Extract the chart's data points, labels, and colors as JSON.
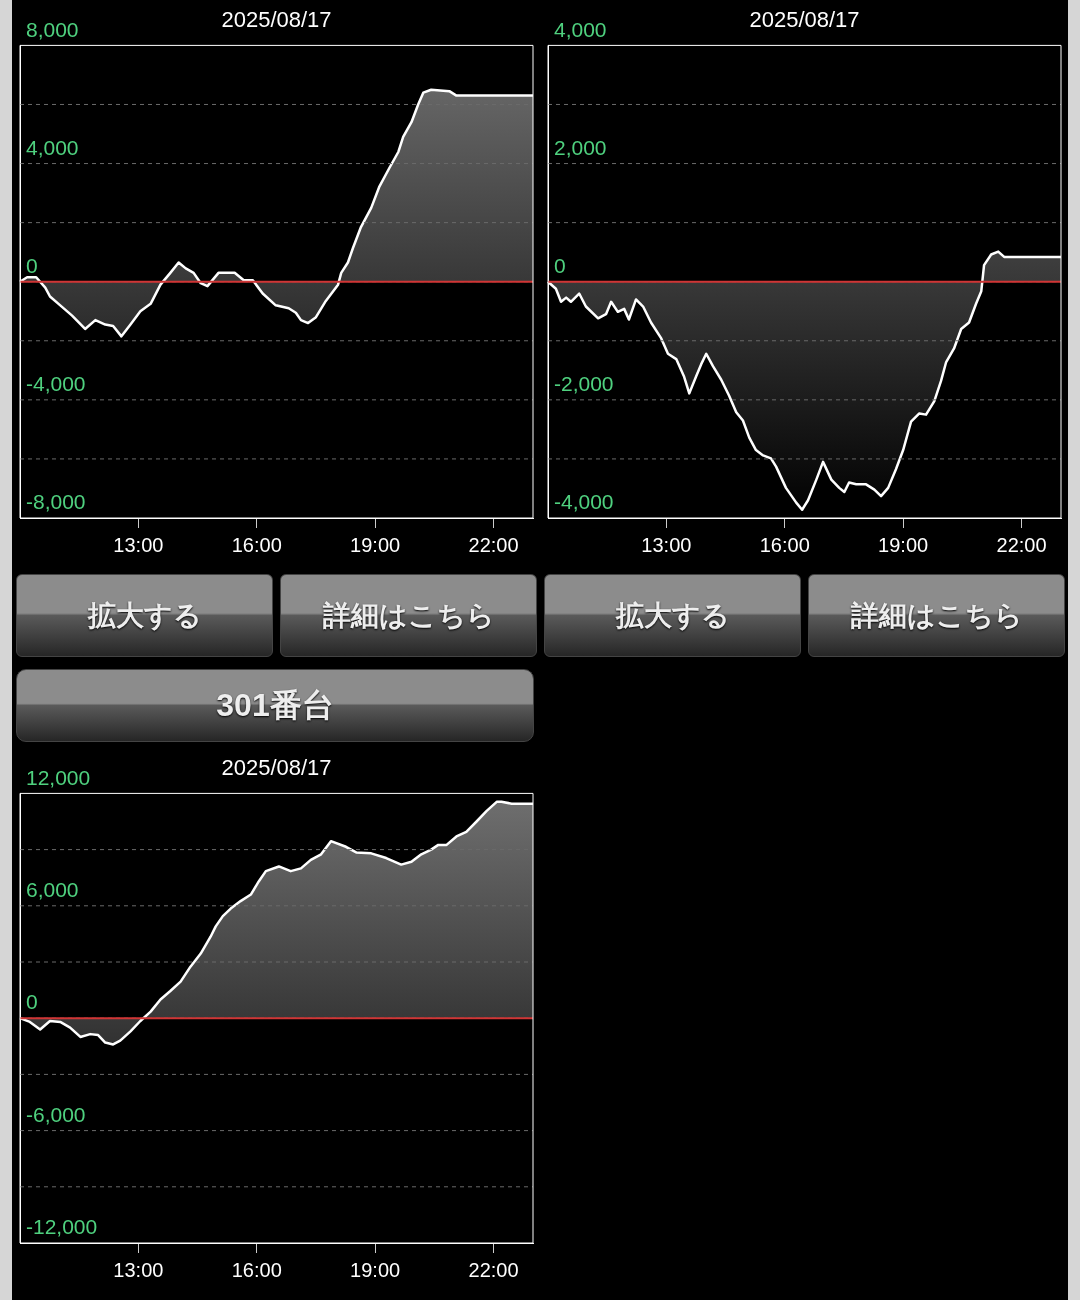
{
  "chart_data": [
    {
      "type": "area",
      "title": "2025/08/17",
      "xlim": [
        10,
        23
      ],
      "ylim": [
        -8000,
        8000
      ],
      "xticks": [
        {
          "value": 13,
          "label": "13:00"
        },
        {
          "value": 16,
          "label": "16:00"
        },
        {
          "value": 19,
          "label": "19:00"
        },
        {
          "value": 22,
          "label": "22:00"
        }
      ],
      "yticks": [
        {
          "value": -8000,
          "label": "-8,000"
        },
        {
          "value": -6000,
          "label": null
        },
        {
          "value": -4000,
          "label": "-4,000"
        },
        {
          "value": -2000,
          "label": null
        },
        {
          "value": 0,
          "label": "0"
        },
        {
          "value": 2000,
          "label": null
        },
        {
          "value": 4000,
          "label": "4,000"
        },
        {
          "value": 6000,
          "label": null
        },
        {
          "value": 8000,
          "label": "8,000"
        }
      ],
      "grid": "y",
      "ref_lines": [
        {
          "axis": "y",
          "value": 0,
          "color": "#d03535"
        }
      ],
      "series": [
        {
          "color": "#ffffff",
          "x": [
            10.0,
            10.18,
            10.41,
            10.64,
            10.76,
            11.02,
            11.32,
            11.65,
            11.91,
            12.16,
            12.36,
            12.57,
            12.8,
            13.05,
            13.31,
            13.56,
            13.81,
            14.02,
            14.2,
            14.4,
            14.58,
            14.75,
            15.03,
            15.44,
            15.67,
            15.9,
            16.15,
            16.48,
            16.81,
            16.99,
            17.12,
            17.3,
            17.5,
            17.75,
            18.06,
            18.14,
            18.31,
            18.44,
            18.64,
            18.9,
            19.1,
            19.36,
            19.59,
            19.71,
            19.92,
            20.09,
            20.22,
            20.42,
            20.88,
            21.06,
            23
          ],
          "values": [
            0,
            150,
            150,
            -200,
            -500,
            -800,
            -1150,
            -1600,
            -1300,
            -1450,
            -1500,
            -1850,
            -1450,
            -1000,
            -750,
            -100,
            300,
            650,
            450,
            300,
            -50,
            -150,
            300,
            300,
            50,
            50,
            -400,
            -800,
            -900,
            -1050,
            -1300,
            -1400,
            -1200,
            -650,
            -100,
            300,
            650,
            1150,
            1850,
            2500,
            3200,
            3850,
            4400,
            4900,
            5400,
            6000,
            6400,
            6500,
            6450,
            6300,
            6300
          ]
        }
      ]
    },
    {
      "type": "area",
      "title": "2025/08/17",
      "xlim": [
        10,
        23
      ],
      "ylim": [
        -4000,
        4000
      ],
      "xticks": [
        {
          "value": 13,
          "label": "13:00"
        },
        {
          "value": 16,
          "label": "16:00"
        },
        {
          "value": 19,
          "label": "19:00"
        },
        {
          "value": 22,
          "label": "22:00"
        }
      ],
      "yticks": [
        {
          "value": -4000,
          "label": "-4,000"
        },
        {
          "value": -3000,
          "label": null
        },
        {
          "value": -2000,
          "label": "-2,000"
        },
        {
          "value": -1000,
          "label": null
        },
        {
          "value": 0,
          "label": "0"
        },
        {
          "value": 1000,
          "label": null
        },
        {
          "value": 2000,
          "label": "2,000"
        },
        {
          "value": 3000,
          "label": null
        },
        {
          "value": 4000,
          "label": "4,000"
        }
      ],
      "grid": "y",
      "ref_lines": [
        {
          "axis": "y",
          "value": 0,
          "color": "#d03535"
        }
      ],
      "series": [
        {
          "color": "#ffffff",
          "x": [
            10.0,
            10.2,
            10.33,
            10.46,
            10.58,
            10.79,
            10.96,
            11.27,
            11.47,
            11.6,
            11.77,
            11.93,
            12.05,
            12.23,
            12.41,
            12.61,
            12.87,
            13.04,
            13.25,
            13.45,
            13.58,
            13.75,
            13.88,
            14.01,
            14.18,
            14.39,
            14.59,
            14.77,
            14.94,
            15.1,
            15.27,
            15.45,
            15.65,
            15.78,
            16.03,
            16.29,
            16.44,
            16.59,
            16.8,
            16.97,
            17.18,
            17.38,
            17.51,
            17.63,
            17.81,
            18.06,
            18.27,
            18.44,
            18.62,
            18.82,
            19.0,
            19.2,
            19.41,
            19.58,
            19.79,
            19.96,
            20.09,
            20.29,
            20.47,
            20.67,
            20.85,
            20.98,
            21.05,
            21.23,
            21.41,
            21.56,
            23
          ],
          "values": [
            0,
            -120,
            -340,
            -270,
            -340,
            -200,
            -420,
            -620,
            -550,
            -340,
            -510,
            -460,
            -640,
            -300,
            -420,
            -690,
            -960,
            -1220,
            -1310,
            -1610,
            -1890,
            -1610,
            -1400,
            -1220,
            -1430,
            -1660,
            -1930,
            -2210,
            -2350,
            -2640,
            -2850,
            -2940,
            -2990,
            -3130,
            -3490,
            -3740,
            -3860,
            -3700,
            -3350,
            -3050,
            -3350,
            -3490,
            -3560,
            -3400,
            -3430,
            -3430,
            -3520,
            -3630,
            -3490,
            -3170,
            -2850,
            -2370,
            -2230,
            -2250,
            -2020,
            -1680,
            -1360,
            -1130,
            -800,
            -690,
            -370,
            -160,
            280,
            460,
            510,
            420,
            420
          ]
        }
      ]
    },
    {
      "type": "other",
      "annotations": [
        "拡大する",
        "詳細はこちら",
        "拡大する",
        "詳細はこちら"
      ]
    },
    {
      "type": "other",
      "title": "301番台"
    },
    {
      "type": "area",
      "title": "2025/08/17",
      "xlim": [
        10,
        23
      ],
      "ylim": [
        -12000,
        12000
      ],
      "xticks": [
        {
          "value": 13,
          "label": "13:00"
        },
        {
          "value": 16,
          "label": "16:00"
        },
        {
          "value": 19,
          "label": "19:00"
        },
        {
          "value": 22,
          "label": "22:00"
        }
      ],
      "yticks": [
        {
          "value": -12000,
          "label": "-12,000"
        },
        {
          "value": -9000,
          "label": null
        },
        {
          "value": -6000,
          "label": "-6,000"
        },
        {
          "value": -3000,
          "label": null
        },
        {
          "value": 0,
          "label": "0"
        },
        {
          "value": 3000,
          "label": null
        },
        {
          "value": 6000,
          "label": "6,000"
        },
        {
          "value": 9000,
          "label": null
        },
        {
          "value": 12000,
          "label": "12,000"
        }
      ],
      "grid": "y",
      "ref_lines": [
        {
          "axis": "y",
          "value": 0,
          "color": "#d03535"
        }
      ],
      "series": [
        {
          "color": "#ffffff",
          "x": [
            10.0,
            10.25,
            10.51,
            10.76,
            11.02,
            11.27,
            11.53,
            11.78,
            11.98,
            12.16,
            12.36,
            12.54,
            12.8,
            13.05,
            13.31,
            13.56,
            13.81,
            14.07,
            14.32,
            14.58,
            14.83,
            14.96,
            15.14,
            15.34,
            15.59,
            15.85,
            16.05,
            16.23,
            16.56,
            16.86,
            17.12,
            17.37,
            17.63,
            17.88,
            18.26,
            18.52,
            18.9,
            19.28,
            19.66,
            19.92,
            20.17,
            20.42,
            20.6,
            20.81,
            21.06,
            21.31,
            21.57,
            21.82,
            22.08,
            22.2,
            22.46,
            23
          ],
          "values": [
            0,
            -200,
            -600,
            -150,
            -200,
            -500,
            -1000,
            -850,
            -900,
            -1300,
            -1400,
            -1200,
            -700,
            -150,
            350,
            1000,
            1450,
            1950,
            2750,
            3450,
            4350,
            4900,
            5450,
            5850,
            6250,
            6600,
            7300,
            7850,
            8100,
            7850,
            8000,
            8450,
            8750,
            9450,
            9150,
            8850,
            8800,
            8550,
            8200,
            8350,
            8750,
            9000,
            9250,
            9250,
            9700,
            9950,
            10500,
            11050,
            11550,
            11550,
            11450,
            11450
          ]
        }
      ]
    }
  ]
}
